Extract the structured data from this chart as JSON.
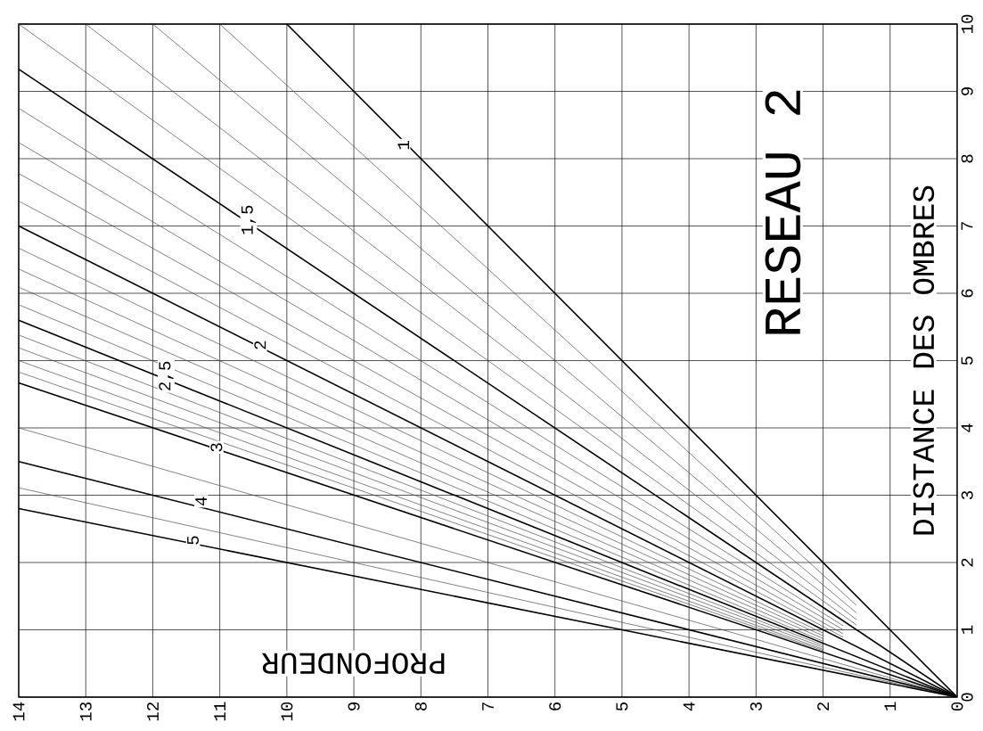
{
  "chart_data": {
    "type": "line",
    "title": "RESEAU 2",
    "xlabel": "PROFONDEUR",
    "ylabel": "DISTANCE DES OMBRES",
    "xlim": [
      14,
      0
    ],
    "ylim": [
      0,
      10
    ],
    "xticks": [
      0,
      1,
      2,
      3,
      4,
      5,
      6,
      7,
      8,
      9,
      10,
      11,
      12,
      13,
      14
    ],
    "yticks": [
      0,
      1,
      2,
      3,
      4,
      5,
      6,
      7,
      8,
      9,
      10
    ],
    "grid": true,
    "series": [
      {
        "color": "#000000",
        "x": [
          0,
          10
        ],
        "values": [
          0,
          10
        ]
      },
      {
        "color": "#444444",
        "x": [
          1.5,
          11
        ],
        "values": [
          1.36,
          10
        ]
      },
      {
        "color": "#444444",
        "x": [
          1.5,
          12
        ],
        "values": [
          1.25,
          10
        ]
      },
      {
        "color": "#444444",
        "x": [
          1.5,
          13
        ],
        "values": [
          1.15,
          10
        ]
      },
      {
        "color": "#444444",
        "x": [
          1.5,
          14
        ],
        "values": [
          1.07,
          10
        ]
      },
      {
        "color": "#000000",
        "x": [
          0,
          14
        ],
        "values": [
          0,
          9.33
        ]
      },
      {
        "color": "#444444",
        "x": [
          1.7,
          14
        ],
        "values": [
          1.06,
          8.75
        ]
      },
      {
        "color": "#444444",
        "x": [
          1.7,
          14
        ],
        "values": [
          1.0,
          8.24
        ]
      },
      {
        "color": "#444444",
        "x": [
          1.7,
          14
        ],
        "values": [
          0.94,
          7.78
        ]
      },
      {
        "color": "#444444",
        "x": [
          1.7,
          14
        ],
        "values": [
          0.89,
          7.37
        ]
      },
      {
        "color": "#000000",
        "x": [
          0,
          14
        ],
        "values": [
          0,
          7
        ]
      },
      {
        "color": "#444444",
        "x": [
          2,
          14
        ],
        "values": [
          0.95,
          6.67
        ]
      },
      {
        "color": "#444444",
        "x": [
          2,
          14
        ],
        "values": [
          0.91,
          6.36
        ]
      },
      {
        "color": "#444444",
        "x": [
          2,
          14
        ],
        "values": [
          0.87,
          6.09
        ]
      },
      {
        "color": "#444444",
        "x": [
          2,
          14
        ],
        "values": [
          0.83,
          5.83
        ]
      },
      {
        "color": "#000000",
        "x": [
          0,
          14
        ],
        "values": [
          0,
          5.6
        ]
      },
      {
        "color": "#444444",
        "x": [
          2,
          14
        ],
        "values": [
          0.77,
          5.38
        ]
      },
      {
        "color": "#444444",
        "x": [
          2,
          14
        ],
        "values": [
          0.74,
          5.19
        ]
      },
      {
        "color": "#444444",
        "x": [
          2,
          14
        ],
        "values": [
          0.71,
          5
        ]
      },
      {
        "color": "#444444",
        "x": [
          2,
          14
        ],
        "values": [
          0.69,
          4.83
        ]
      },
      {
        "color": "#000000",
        "x": [
          0,
          14
        ],
        "values": [
          0,
          4.67
        ]
      },
      {
        "color": "#444444",
        "x": [
          0,
          14
        ],
        "values": [
          0,
          4
        ]
      },
      {
        "color": "#000000",
        "x": [
          0,
          14
        ],
        "values": [
          0,
          3.5
        ]
      },
      {
        "color": "#444444",
        "x": [
          0,
          14
        ],
        "values": [
          0,
          3.11
        ]
      },
      {
        "color": "#000000",
        "x": [
          0,
          14
        ],
        "values": [
          0,
          2.8
        ]
      }
    ],
    "annotations": [
      {
        "text": "1",
        "x": 8.26,
        "y": 8.2
      },
      {
        "text": "1,5",
        "x": 10.57,
        "y": 7.09
      },
      {
        "text": "2",
        "x": 10.4,
        "y": 5.23
      },
      {
        "text": "2,5",
        "x": 11.8,
        "y": 4.77
      },
      {
        "text": "3",
        "x": 11.05,
        "y": 3.71
      },
      {
        "text": "4",
        "x": 11.28,
        "y": 2.91
      },
      {
        "text": "5",
        "x": 11.4,
        "y": 2.33
      }
    ]
  }
}
